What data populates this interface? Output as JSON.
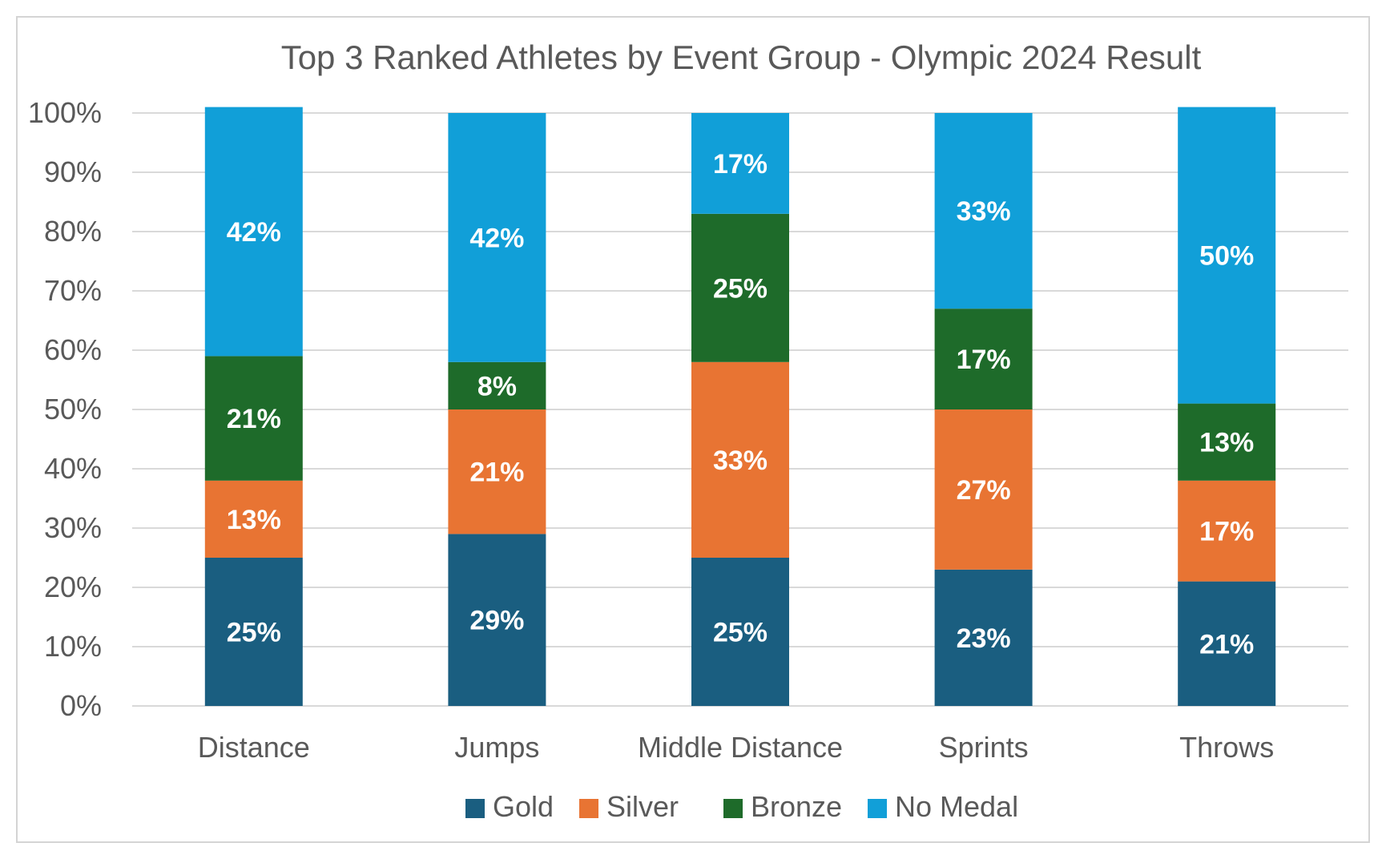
{
  "chart_data": {
    "type": "bar",
    "stacked": true,
    "title": "Top 3 Ranked Athletes by Event Group - Olympic 2024 Result",
    "categories": [
      "Distance",
      "Jumps",
      "Middle Distance",
      "Sprints",
      "Throws"
    ],
    "series": [
      {
        "name": "Gold",
        "color": "#1a5e80",
        "values": [
          25,
          29,
          25,
          23,
          21
        ]
      },
      {
        "name": "Silver",
        "color": "#e87433",
        "values": [
          13,
          21,
          33,
          27,
          17
        ]
      },
      {
        "name": "Bronze",
        "color": "#1e6b2a",
        "values": [
          21,
          8,
          25,
          17,
          13
        ]
      },
      {
        "name": "No Medal",
        "color": "#119fd8",
        "values": [
          42,
          42,
          17,
          33,
          50
        ]
      }
    ],
    "ylim": [
      0,
      100
    ],
    "y_ticks": [
      "0%",
      "10%",
      "20%",
      "30%",
      "40%",
      "50%",
      "60%",
      "70%",
      "80%",
      "90%",
      "100%"
    ],
    "y_unit": "%",
    "grid": true,
    "legend_position": "bottom"
  }
}
